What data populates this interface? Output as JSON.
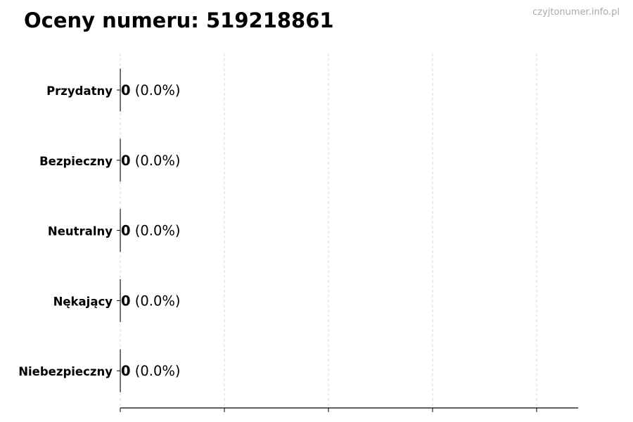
{
  "title": "Oceny numeru: 519218861",
  "watermark": "czyjtonumer.info.pl",
  "chart_data": {
    "type": "bar",
    "orientation": "horizontal",
    "categories": [
      "Przydatny",
      "Bezpieczny",
      "Neutralny",
      "Nękający",
      "Niebezpieczny"
    ],
    "values": [
      0,
      0,
      0,
      0,
      0
    ],
    "value_labels": [
      "0",
      "0",
      "0",
      "0",
      "0"
    ],
    "percent_labels": [
      "(0.0%)",
      "(0.0%)",
      "(0.0%)",
      "(0.0%)",
      "(0.0%)"
    ],
    "grid": "x, dashed",
    "xlim": [
      0,
      4.4
    ],
    "x_ticks_labeled": false,
    "colors": {
      "grid": "#d9d9d9",
      "axis": "#000000"
    }
  }
}
